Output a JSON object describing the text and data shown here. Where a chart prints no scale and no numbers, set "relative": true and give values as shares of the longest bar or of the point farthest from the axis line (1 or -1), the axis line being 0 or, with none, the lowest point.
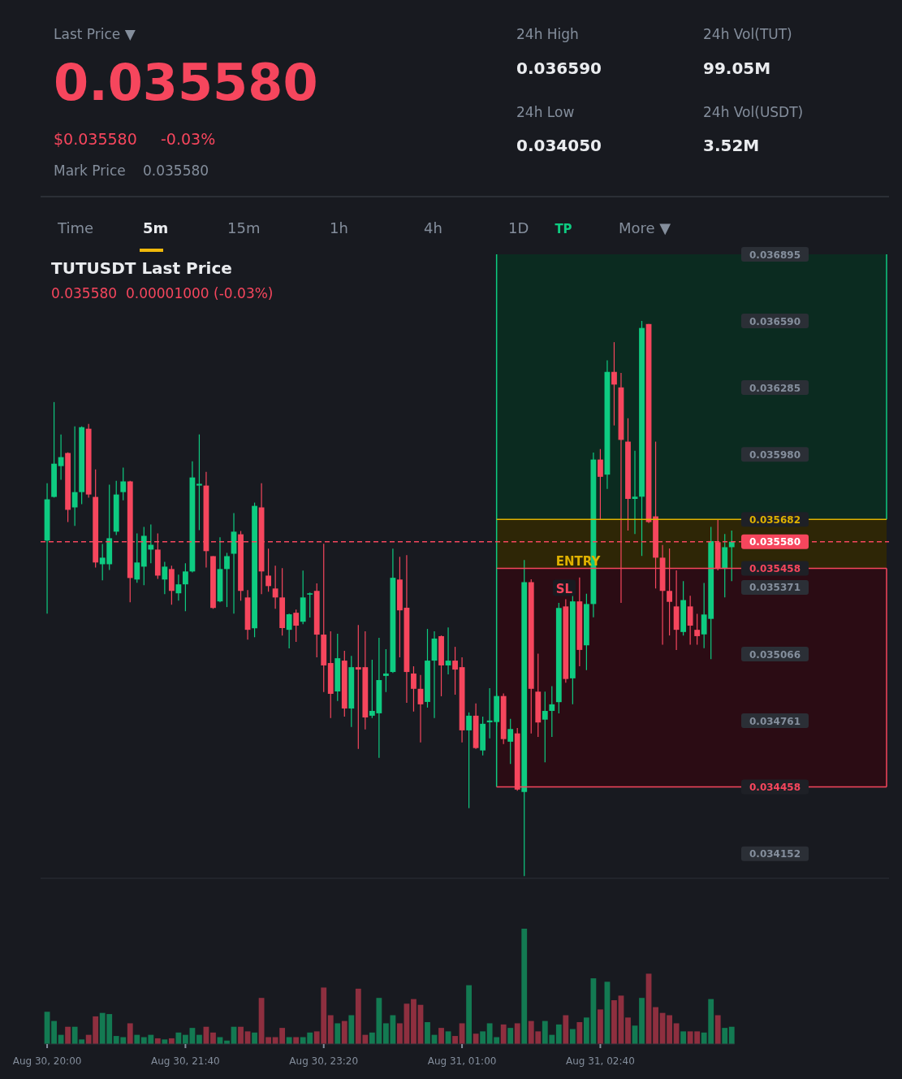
{
  "chart_data": [
    {
      "type": "other",
      "annotations": [
        "Last Price ▼",
        "0.035580",
        "$0.035580",
        "-0.03%",
        "Mark Price",
        "0.035580",
        "24h High",
        "0.036590",
        "24h Vol(TUT)",
        "99.05M",
        "24h Low",
        "0.034050",
        "24h Vol(USDT)",
        "3.52M",
        "Time",
        "5m",
        "15m",
        "1h",
        "4h",
        "1D",
        "More ▼"
      ]
    },
    {
      "type": "candlestick",
      "title": "TUTUSDT Last Price",
      "subtitle": "0.035580  0.00001000 (-0.03%)",
      "tick_labels": "y",
      "categories": [
        null,
        null,
        null,
        null,
        null,
        null,
        null,
        null,
        null,
        null,
        null,
        null,
        null,
        null,
        null,
        null,
        null,
        null,
        null,
        null,
        null,
        null,
        null,
        null,
        null,
        null,
        null,
        null,
        null,
        null,
        null,
        null,
        null,
        null,
        null,
        null,
        null,
        null,
        null,
        null,
        null,
        null,
        null,
        null,
        null,
        null,
        null,
        null,
        null,
        null,
        null,
        null,
        null,
        null,
        null,
        null,
        null,
        null,
        null,
        null,
        null,
        null,
        null,
        null,
        null,
        null,
        null,
        null,
        null,
        null,
        null,
        null,
        null,
        null,
        null,
        null,
        null,
        null,
        null,
        null,
        null,
        null,
        null,
        null,
        null,
        null,
        null,
        null,
        null,
        null,
        null,
        null,
        null,
        null,
        null,
        null,
        null,
        null,
        null,
        null
      ],
      "ylim": [
        0.03404,
        0.036895
      ],
      "yticks": [
        {
          "value": 0.036895,
          "label": "0.036895"
        },
        {
          "value": 0.03659,
          "label": "0.036590"
        },
        {
          "value": 0.036285,
          "label": "0.036285"
        },
        {
          "value": 0.03598,
          "label": "0.035980"
        },
        {
          "value": 0.035371,
          "label": "0.035371"
        },
        {
          "value": 0.035066,
          "label": "0.035066"
        },
        {
          "value": 0.034761,
          "label": "0.034761"
        },
        {
          "value": 0.034152,
          "label": "0.034152"
        }
      ],
      "ref_lines": [
        {
          "axis": "y",
          "value": 0.03558,
          "label": "0.035580",
          "color": "#f6465d",
          "line_style": "dashed"
        },
        {
          "axis": "y",
          "value": 0.035682,
          "label": "0.035682",
          "color": "#e0b100",
          "line_style": "solid"
        },
        {
          "axis": "y",
          "value": 0.035458,
          "label": "0.035458",
          "color": "#f6465d",
          "line_style": "solid"
        },
        {
          "axis": "y",
          "value": 0.034458,
          "label": "0.034458",
          "color": "#f6465d",
          "line_style": "solid"
        }
      ],
      "bands": [
        {
          "axis": "y",
          "from": 0.035682,
          "to": 0.036895,
          "label": "TP",
          "color": "#0b2b20"
        },
        {
          "axis": "y",
          "from": 0.035458,
          "to": 0.035682,
          "label": "ENTRY",
          "color": "#2e2606"
        },
        {
          "axis": "y",
          "from": 0.034458,
          "to": 0.035458,
          "label": "SL",
          "color": "#2b0c14"
        }
      ],
      "ohlc": [
        [
          0.035585,
          0.035848,
          0.035251,
          0.035774
        ],
        [
          0.035785,
          0.036219,
          0.035782,
          0.035937
        ],
        [
          0.035926,
          0.036071,
          0.035863,
          0.035967
        ],
        [
          0.035986,
          0.035989,
          0.03567,
          0.035726
        ],
        [
          0.035737,
          0.036108,
          0.035652,
          0.035807
        ],
        [
          0.035807,
          0.036108,
          0.035752,
          0.036104
        ],
        [
          0.036097,
          0.036119,
          0.035782,
          0.035796
        ],
        [
          0.035785,
          0.035911,
          0.035462,
          0.035485
        ],
        [
          0.035477,
          0.03557,
          0.035403,
          0.035507
        ],
        [
          0.035477,
          0.035841,
          0.035451,
          0.035596
        ],
        [
          0.035626,
          0.035859,
          0.035611,
          0.035796
        ],
        [
          0.035807,
          0.035919,
          0.03577,
          0.035856
        ],
        [
          0.035856,
          0.035859,
          0.035303,
          0.035414
        ],
        [
          0.035407,
          0.035618,
          0.035392,
          0.035485
        ],
        [
          0.035466,
          0.035648,
          0.035381,
          0.035607
        ],
        [
          0.035544,
          0.035659,
          0.035481,
          0.035566
        ],
        [
          0.035544,
          0.035618,
          0.03541,
          0.035425
        ],
        [
          0.035407,
          0.035488,
          0.03534,
          0.035466
        ],
        [
          0.035455,
          0.03547,
          0.035292,
          0.035355
        ],
        [
          0.035344,
          0.035429,
          0.03531,
          0.035385
        ],
        [
          0.035385,
          0.035481,
          0.035262,
          0.035444
        ],
        [
          0.035444,
          0.035948,
          0.03544,
          0.035874
        ],
        [
          0.035837,
          0.036071,
          0.035633,
          0.035845
        ],
        [
          0.035837,
          0.0359,
          0.035462,
          0.035537
        ],
        [
          0.035514,
          0.035514,
          0.035273,
          0.035277
        ],
        [
          0.035307,
          0.0356,
          0.035303,
          0.035455
        ],
        [
          0.035455,
          0.035529,
          0.035281,
          0.035514
        ],
        [
          0.035525,
          0.035711,
          0.035251,
          0.035626
        ],
        [
          0.035614,
          0.035629,
          0.03531,
          0.035355
        ],
        [
          0.035325,
          0.035359,
          0.035132,
          0.035177
        ],
        [
          0.035184,
          0.035759,
          0.035143,
          0.035744
        ],
        [
          0.035737,
          0.035848,
          0.03534,
          0.035444
        ],
        [
          0.035425,
          0.035548,
          0.035351,
          0.035377
        ],
        [
          0.035366,
          0.03547,
          0.035273,
          0.035325
        ],
        [
          0.035325,
          0.035459,
          0.035151,
          0.035185
        ],
        [
          0.035177,
          0.035251,
          0.035092,
          0.035248
        ],
        [
          0.035255,
          0.03527,
          0.035122,
          0.035196
        ],
        [
          0.035214,
          0.035448,
          0.035203,
          0.035325
        ],
        [
          0.035338,
          0.035348,
          0.035233,
          0.035344
        ],
        [
          0.035355,
          0.035389,
          0.035051,
          0.035155
        ],
        [
          0.035155,
          0.035571,
          0.034892,
          0.035014
        ],
        [
          0.035025,
          0.03517,
          0.034773,
          0.034884
        ],
        [
          0.034895,
          0.035159,
          0.034851,
          0.035047
        ],
        [
          0.035036,
          0.035081,
          0.03478,
          0.034817
        ],
        [
          0.034817,
          0.035058,
          0.034732,
          0.035006
        ],
        [
          0.035006,
          0.035199,
          0.034632,
          0.034995
        ],
        [
          0.035006,
          0.03517,
          0.034721,
          0.034776
        ],
        [
          0.034784,
          0.03504,
          0.034773,
          0.034806
        ],
        [
          0.034795,
          0.03514,
          0.034591,
          0.034947
        ],
        [
          0.034966,
          0.035088,
          0.034892,
          0.034977
        ],
        [
          0.034984,
          0.035548,
          0.03498,
          0.035415
        ],
        [
          0.035407,
          0.035511,
          0.035051,
          0.035266
        ],
        [
          0.035278,
          0.035519,
          0.034843,
          0.034984
        ],
        [
          0.034977,
          0.03501,
          0.034803,
          0.034907
        ],
        [
          0.034907,
          0.03497,
          0.034662,
          0.034836
        ],
        [
          0.034847,
          0.035181,
          0.034821,
          0.035036
        ],
        [
          0.035036,
          0.03517,
          0.034773,
          0.035137
        ],
        [
          0.035148,
          0.035151,
          0.034873,
          0.035014
        ],
        [
          0.035014,
          0.035188,
          0.034973,
          0.035036
        ],
        [
          0.035036,
          0.035099,
          0.03488,
          0.034995
        ],
        [
          0.035006,
          0.035051,
          0.034662,
          0.034717
        ],
        [
          0.034717,
          0.034799,
          0.034361,
          0.034784
        ],
        [
          0.034784,
          0.03484,
          0.034632,
          0.034636
        ],
        [
          0.034625,
          0.03478,
          0.034602,
          0.034747
        ],
        [
          0.034754,
          0.03491,
          0.03468,
          0.034762
        ],
        [
          0.034755,
          0.034886,
          0.034737,
          0.034874
        ],
        [
          0.034874,
          0.034886,
          0.034654,
          0.034677
        ],
        [
          0.034665,
          0.03477,
          0.034563,
          0.034723
        ],
        [
          0.034703,
          0.034728,
          0.034441,
          0.034446
        ],
        [
          0.034435,
          0.035496,
          0.03405,
          0.035395
        ],
        [
          0.035395,
          0.035408,
          0.034703,
          0.034907
        ],
        [
          0.034894,
          0.035068,
          0.034687,
          0.034753
        ],
        [
          0.034766,
          0.034894,
          0.034571,
          0.034806
        ],
        [
          0.034806,
          0.034919,
          0.034687,
          0.034836
        ],
        [
          0.034846,
          0.0353,
          0.034795,
          0.035277
        ],
        [
          0.035284,
          0.035317,
          0.034935,
          0.034952
        ],
        [
          0.034955,
          0.035333,
          0.034836,
          0.035307
        ],
        [
          0.035307,
          0.035416,
          0.03501,
          0.035085
        ],
        [
          0.035106,
          0.035342,
          0.034993,
          0.035295
        ],
        [
          0.035295,
          0.035988,
          0.035234,
          0.035956
        ],
        [
          0.035956,
          0.036004,
          0.035681,
          0.035877
        ],
        [
          0.035887,
          0.03641,
          0.035822,
          0.036357
        ],
        [
          0.036357,
          0.036493,
          0.036112,
          0.036299
        ],
        [
          0.036286,
          0.036352,
          0.0353,
          0.036046
        ],
        [
          0.036038,
          0.036145,
          0.035631,
          0.035776
        ],
        [
          0.035776,
          0.035996,
          0.035615,
          0.035786
        ],
        [
          0.035786,
          0.03659,
          0.035515,
          0.036558
        ],
        [
          0.036576,
          0.036576,
          0.035665,
          0.03567
        ],
        [
          0.035696,
          0.036038,
          0.035366,
          0.035507
        ],
        [
          0.035507,
          0.035565,
          0.035109,
          0.035355
        ],
        [
          0.035355,
          0.035549,
          0.035151,
          0.035305
        ],
        [
          0.035284,
          0.035449,
          0.035085,
          0.035177
        ],
        [
          0.035167,
          0.0354,
          0.035151,
          0.035313
        ],
        [
          0.035284,
          0.035333,
          0.035109,
          0.035196
        ],
        [
          0.035177,
          0.03525,
          0.035109,
          0.035148
        ],
        [
          0.035156,
          0.035391,
          0.035093,
          0.035247
        ],
        [
          0.035227,
          0.035648,
          0.035043,
          0.035583
        ],
        [
          0.035578,
          0.035681,
          0.035449,
          0.035456
        ],
        [
          0.035456,
          0.035615,
          0.035325,
          0.035555
        ],
        [
          0.035555,
          0.035631,
          0.0354,
          0.03558
        ]
      ]
    },
    {
      "type": "bar",
      "relative": true,
      "tick_labels": "x",
      "categories": [
        "Aug 30, 20:00",
        null,
        null,
        null,
        null,
        null,
        null,
        null,
        null,
        null,
        null,
        null,
        null,
        null,
        null,
        null,
        null,
        null,
        null,
        null,
        "Aug 30, 21:40",
        null,
        null,
        null,
        null,
        null,
        null,
        null,
        null,
        null,
        null,
        null,
        null,
        null,
        null,
        null,
        null,
        null,
        null,
        null,
        "Aug 30, 23:20",
        null,
        null,
        null,
        null,
        null,
        null,
        null,
        null,
        null,
        null,
        null,
        null,
        null,
        null,
        null,
        null,
        null,
        null,
        null,
        "Aug 31, 01:00",
        null,
        null,
        null,
        null,
        null,
        null,
        null,
        null,
        null,
        null,
        null,
        null,
        null,
        null,
        null,
        null,
        null,
        null,
        null,
        "Aug 31, 02:40",
        null,
        null,
        null,
        null,
        null,
        null,
        null,
        null,
        null,
        null,
        null,
        null,
        null,
        null,
        null,
        null,
        null,
        null,
        null
      ],
      "values": [
        0.28,
        0.2,
        0.08,
        0.15,
        0.15,
        0.04,
        0.08,
        0.24,
        0.27,
        0.26,
        0.07,
        0.06,
        0.18,
        0.08,
        0.06,
        0.08,
        0.05,
        0.04,
        0.05,
        0.1,
        0.08,
        0.14,
        0.08,
        0.15,
        0.1,
        0.06,
        0.03,
        0.15,
        0.15,
        0.11,
        0.1,
        0.4,
        0.06,
        0.06,
        0.14,
        0.06,
        0.06,
        0.06,
        0.1,
        0.11,
        0.49,
        0.25,
        0.18,
        0.2,
        0.25,
        0.48,
        0.08,
        0.1,
        0.4,
        0.18,
        0.25,
        0.18,
        0.35,
        0.39,
        0.34,
        0.19,
        0.08,
        0.14,
        0.11,
        0.07,
        0.18,
        0.51,
        0.09,
        0.11,
        0.18,
        0.06,
        0.17,
        0.14,
        0.18,
        1,
        0.2,
        0.11,
        0.2,
        0.08,
        0.17,
        0.25,
        0.13,
        0.19,
        0.23,
        0.57,
        0.3,
        0.54,
        0.38,
        0.42,
        0.23,
        0.16,
        0.4,
        0.61,
        0.32,
        0.27,
        0.25,
        0.18,
        0.11,
        0.11,
        0.11,
        0.1,
        0.39,
        0.25,
        0.14,
        0.15
      ],
      "colors": [
        "#137a52",
        "#137a52",
        "#137a52",
        "#8e2f3f",
        "#137a52",
        "#137a52",
        "#8e2f3f",
        "#8e2f3f",
        "#137a52",
        "#137a52",
        "#137a52",
        "#137a52",
        "#8e2f3f",
        "#137a52",
        "#137a52",
        "#137a52",
        "#8e2f3f",
        "#137a52",
        "#8e2f3f",
        "#137a52",
        "#137a52",
        "#137a52",
        "#137a52",
        "#8e2f3f",
        "#8e2f3f",
        "#137a52",
        "#137a52",
        "#137a52",
        "#8e2f3f",
        "#8e2f3f",
        "#137a52",
        "#8e2f3f",
        "#8e2f3f",
        "#8e2f3f",
        "#8e2f3f",
        "#137a52",
        "#8e2f3f",
        "#137a52",
        "#137a52",
        "#8e2f3f",
        "#8e2f3f",
        "#8e2f3f",
        "#137a52",
        "#8e2f3f",
        "#137a52",
        "#8e2f3f",
        "#8e2f3f",
        "#137a52",
        "#137a52",
        "#137a52",
        "#137a52",
        "#8e2f3f",
        "#8e2f3f",
        "#8e2f3f",
        "#8e2f3f",
        "#137a52",
        "#137a52",
        "#8e2f3f",
        "#137a52",
        "#8e2f3f",
        "#8e2f3f",
        "#137a52",
        "#8e2f3f",
        "#137a52",
        "#137a52",
        "#137a52",
        "#8e2f3f",
        "#137a52",
        "#8e2f3f",
        "#137a52",
        "#8e2f3f",
        "#8e2f3f",
        "#137a52",
        "#137a52",
        "#137a52",
        "#8e2f3f",
        "#137a52",
        "#8e2f3f",
        "#137a52",
        "#137a52",
        "#8e2f3f",
        "#137a52",
        "#8e2f3f",
        "#8e2f3f",
        "#8e2f3f",
        "#137a52",
        "#137a52",
        "#8e2f3f",
        "#8e2f3f",
        "#8e2f3f",
        "#8e2f3f",
        "#8e2f3f",
        "#137a52",
        "#8e2f3f",
        "#8e2f3f",
        "#137a52",
        "#137a52",
        "#8e2f3f",
        "#137a52",
        "#137a52"
      ]
    }
  ]
}
